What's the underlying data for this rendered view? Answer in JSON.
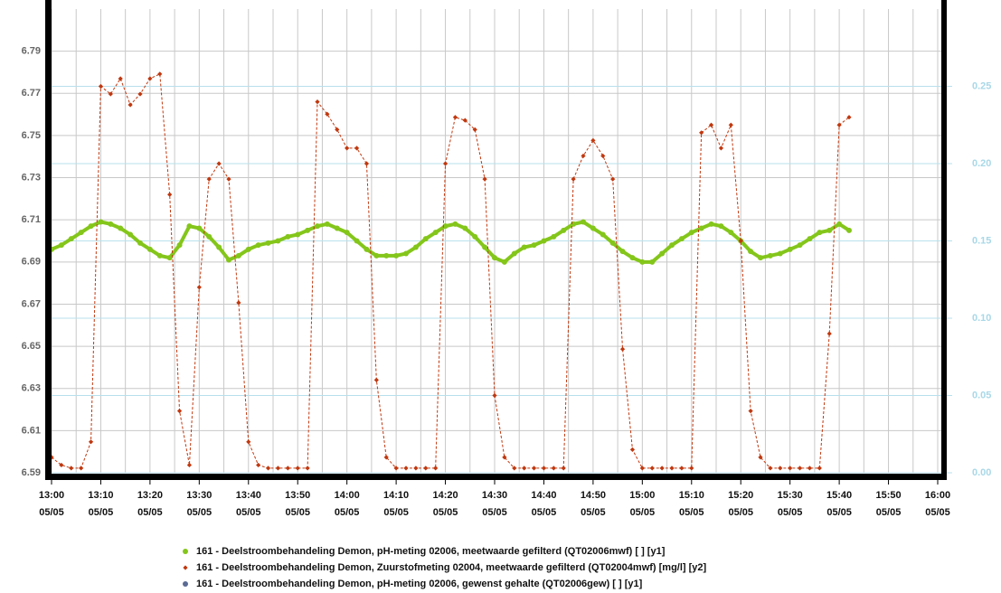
{
  "chart_data": {
    "type": "line",
    "x": [
      "13:00",
      "13:02",
      "13:04",
      "13:06",
      "13:08",
      "13:10",
      "13:12",
      "13:14",
      "13:16",
      "13:18",
      "13:20",
      "13:22",
      "13:24",
      "13:26",
      "13:28",
      "13:30",
      "13:32",
      "13:34",
      "13:36",
      "13:38",
      "13:40",
      "13:42",
      "13:44",
      "13:46",
      "13:48",
      "13:50",
      "13:52",
      "13:54",
      "13:56",
      "13:58",
      "14:00",
      "14:02",
      "14:04",
      "14:06",
      "14:08",
      "14:10",
      "14:12",
      "14:14",
      "14:16",
      "14:18",
      "14:20",
      "14:22",
      "14:24",
      "14:26",
      "14:28",
      "14:30",
      "14:32",
      "14:34",
      "14:36",
      "14:38",
      "14:40",
      "14:42",
      "14:44",
      "14:46",
      "14:48",
      "14:50",
      "14:52",
      "14:54",
      "14:56",
      "14:58",
      "15:00",
      "15:02",
      "15:04",
      "15:06",
      "15:08",
      "15:10",
      "15:12",
      "15:14",
      "15:16",
      "15:18",
      "15:20",
      "15:22",
      "15:24",
      "15:26",
      "15:28",
      "15:30",
      "15:32",
      "15:34",
      "15:36",
      "15:38",
      "15:40",
      "15:42"
    ],
    "series": [
      {
        "name": "161 - Deelstroombehandeling Demon, pH-meting 02006, meetwaarde gefilterd (QT02006mwf) [ ] [y1]",
        "color": "#84c61a",
        "marker": "circle",
        "axis": "y1",
        "values": [
          6.696,
          6.698,
          6.701,
          6.704,
          6.707,
          6.709,
          6.708,
          6.706,
          6.703,
          6.699,
          6.696,
          6.693,
          6.692,
          6.698,
          6.707,
          6.706,
          6.702,
          6.697,
          6.691,
          6.693,
          6.696,
          6.698,
          6.699,
          6.7,
          6.702,
          6.703,
          6.705,
          6.707,
          6.708,
          6.706,
          6.704,
          6.7,
          6.696,
          6.693,
          6.693,
          6.693,
          6.694,
          6.697,
          6.701,
          6.704,
          6.707,
          6.708,
          6.706,
          6.702,
          6.697,
          6.692,
          6.69,
          6.694,
          6.697,
          6.698,
          6.7,
          6.702,
          6.705,
          6.708,
          6.709,
          6.706,
          6.703,
          6.699,
          6.695,
          6.692,
          6.69,
          6.69,
          6.694,
          6.698,
          6.701,
          6.704,
          6.706,
          6.708,
          6.707,
          6.704,
          6.7,
          6.695,
          6.692,
          6.693,
          6.694,
          6.696,
          6.698,
          6.701,
          6.704,
          6.705,
          6.708,
          6.705
        ]
      },
      {
        "name": "161 - Deelstroombehandeling Demon, Zuurstofmeting 02004, meetwaarde gefilterd (QT02004mwf) [mg/l] [y2]",
        "color": "#c0380f",
        "marker": "diamond",
        "axis": "y2",
        "values": [
          0.01,
          0.005,
          0.003,
          0.003,
          0.02,
          0.25,
          0.245,
          0.255,
          0.238,
          0.245,
          0.255,
          0.258,
          0.18,
          0.04,
          0.005,
          0.12,
          0.19,
          0.2,
          0.19,
          0.11,
          0.02,
          0.005,
          0.003,
          0.003,
          0.003,
          0.003,
          0.003,
          0.24,
          0.232,
          0.222,
          0.21,
          0.21,
          0.2,
          0.06,
          0.01,
          0.003,
          0.003,
          0.003,
          0.003,
          0.003,
          0.2,
          0.23,
          0.228,
          0.222,
          0.19,
          0.05,
          0.01,
          0.003,
          0.003,
          0.003,
          0.003,
          0.003,
          0.003,
          0.19,
          0.205,
          0.215,
          0.205,
          0.19,
          0.08,
          0.015,
          0.003,
          0.003,
          0.003,
          0.003,
          0.003,
          0.003,
          0.22,
          0.225,
          0.21,
          0.225,
          0.15,
          0.04,
          0.01,
          0.003,
          0.003,
          0.003,
          0.003,
          0.003,
          0.003,
          0.09,
          0.225,
          0.23
        ]
      },
      {
        "name": "161 - Deelstroombehandeling Demon, pH-meting 02006, gewenst gehalte (QT02006gew) [ ] [y1]",
        "color": "#5a6a94",
        "marker": "circle",
        "axis": "y1",
        "values": [
          null,
          null,
          null,
          null,
          null,
          null,
          null,
          null,
          null,
          null,
          null,
          null,
          null,
          null,
          null,
          null,
          null,
          null,
          null,
          null,
          null,
          null,
          null,
          null,
          null,
          null,
          null,
          null,
          null,
          null,
          null,
          null,
          null,
          null,
          null,
          null,
          null,
          null,
          null,
          null,
          null,
          null,
          null,
          null,
          null,
          null,
          null,
          null,
          null,
          null,
          null,
          null,
          null,
          null,
          null,
          null,
          null,
          null,
          null,
          null,
          null,
          null,
          null,
          null,
          null,
          null,
          null,
          null,
          null,
          null,
          null,
          null,
          null,
          null,
          null,
          null,
          null,
          null,
          null,
          null,
          null,
          null
        ]
      }
    ],
    "xlim": [
      "13:00",
      "16:00"
    ],
    "xticks": [
      {
        "time": "13:00",
        "date": "05/05"
      },
      {
        "time": "13:10",
        "date": "05/05"
      },
      {
        "time": "13:20",
        "date": "05/05"
      },
      {
        "time": "13:30",
        "date": "05/05"
      },
      {
        "time": "13:40",
        "date": "05/05"
      },
      {
        "time": "13:50",
        "date": "05/05"
      },
      {
        "time": "14:00",
        "date": "05/05"
      },
      {
        "time": "14:10",
        "date": "05/05"
      },
      {
        "time": "14:20",
        "date": "05/05"
      },
      {
        "time": "14:30",
        "date": "05/05"
      },
      {
        "time": "14:40",
        "date": "05/05"
      },
      {
        "time": "14:50",
        "date": "05/05"
      },
      {
        "time": "15:00",
        "date": "05/05"
      },
      {
        "time": "15:10",
        "date": "05/05"
      },
      {
        "time": "15:20",
        "date": "05/05"
      },
      {
        "time": "15:30",
        "date": "05/05"
      },
      {
        "time": "15:40",
        "date": "05/05"
      },
      {
        "time": "15:50",
        "date": "05/05"
      },
      {
        "time": "16:00",
        "date": "05/05"
      }
    ],
    "x_minor_grid_minutes": 5,
    "ylim": [
      6.59,
      6.81
    ],
    "yticks": [
      6.59,
      6.61,
      6.63,
      6.65,
      6.67,
      6.69,
      6.71,
      6.73,
      6.75,
      6.77,
      6.79
    ],
    "y2lim": [
      0,
      0.3
    ],
    "y2ticks": [
      {
        "value": 0,
        "label": "0.00"
      },
      0.05,
      {
        "value": 0.1,
        "label": "0.10"
      },
      0.15,
      {
        "value": 0.2,
        "label": "0.20"
      },
      0.25
    ],
    "grid": true
  }
}
